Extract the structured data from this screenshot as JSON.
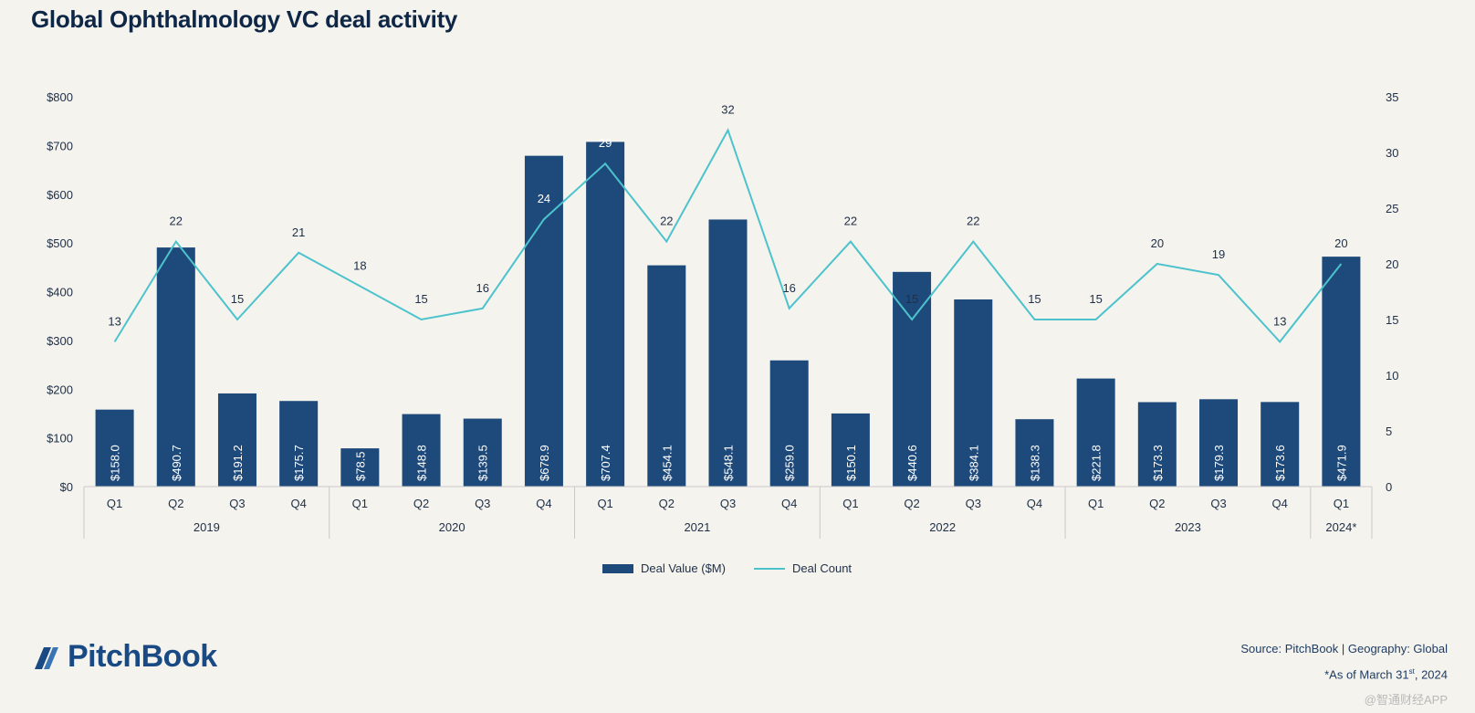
{
  "header": {
    "title": "Global Ophthalmology VC deal activity"
  },
  "footer": {
    "source": "Source: PitchBook | Geography: Global",
    "note_prefix": "*As of March 31",
    "note_sup": "st",
    "note_suffix": ", 2024",
    "logo_text": "PitchBook",
    "watermark": "@智通财经APP"
  },
  "colors": {
    "bar": "#1e4a7b",
    "line": "#4cc3cc",
    "text": "#1e2f47",
    "axis": "#c9c9c9"
  },
  "chart_data": {
    "type": "bar",
    "title": "Global Ophthalmology VC deal activity",
    "categories": [
      "Q1",
      "Q2",
      "Q3",
      "Q4",
      "Q1",
      "Q2",
      "Q3",
      "Q4",
      "Q1",
      "Q2",
      "Q3",
      "Q4",
      "Q1",
      "Q2",
      "Q3",
      "Q4",
      "Q1",
      "Q2",
      "Q3",
      "Q4",
      "Q1"
    ],
    "years": [
      {
        "label": "2019",
        "start": 0,
        "count": 4
      },
      {
        "label": "2020",
        "start": 4,
        "count": 4
      },
      {
        "label": "2021",
        "start": 8,
        "count": 4
      },
      {
        "label": "2022",
        "start": 12,
        "count": 4
      },
      {
        "label": "2023",
        "start": 16,
        "count": 4
      },
      {
        "label": "2024*",
        "start": 20,
        "count": 1
      }
    ],
    "series": [
      {
        "name": "Deal Value ($M)",
        "type": "bar",
        "axis": "left",
        "values": [
          158.0,
          490.7,
          191.2,
          175.7,
          78.5,
          148.8,
          139.5,
          678.9,
          707.4,
          454.1,
          548.1,
          259.0,
          150.1,
          440.6,
          384.1,
          138.3,
          221.8,
          173.3,
          179.3,
          173.6,
          471.9
        ],
        "labels": [
          "$158.0",
          "$490.7",
          "$191.2",
          "$175.7",
          "$78.5",
          "$148.8",
          "$139.5",
          "$678.9",
          "$707.4",
          "$454.1",
          "$548.1",
          "$259.0",
          "$150.1",
          "$440.6",
          "$384.1",
          "$138.3",
          "$221.8",
          "$173.3",
          "$179.3",
          "$173.6",
          "$471.9"
        ]
      },
      {
        "name": "Deal Count",
        "type": "line",
        "axis": "right",
        "values": [
          13,
          22,
          15,
          21,
          18,
          15,
          16,
          24,
          29,
          22,
          32,
          16,
          22,
          15,
          22,
          15,
          15,
          20,
          19,
          13,
          20
        ]
      }
    ],
    "y_left": {
      "min": 0,
      "max": 800,
      "ticks": [
        0,
        100,
        200,
        300,
        400,
        500,
        600,
        700,
        800
      ],
      "tick_labels": [
        "$0",
        "$100",
        "$200",
        "$300",
        "$400",
        "$500",
        "$600",
        "$700",
        "$800"
      ]
    },
    "y_right": {
      "min": 0,
      "max": 35,
      "ticks": [
        0,
        5,
        10,
        15,
        20,
        25,
        30,
        35
      ],
      "tick_labels": [
        "0",
        "5",
        "10",
        "15",
        "20",
        "25",
        "30",
        "35"
      ]
    },
    "legend": {
      "placement": "bottom"
    }
  }
}
